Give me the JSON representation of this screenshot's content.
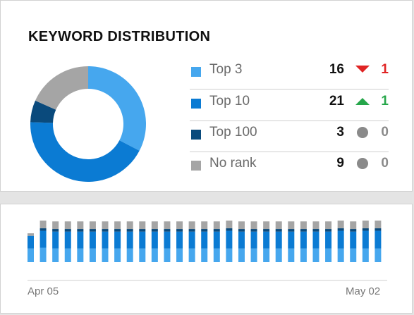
{
  "widget": {
    "title": "KEYWORD DISTRIBUTION"
  },
  "legend": [
    {
      "label": "Top 3",
      "count": "16",
      "trend": "down",
      "change": "1",
      "color": "#46a7ee"
    },
    {
      "label": "Top 10",
      "count": "21",
      "trend": "up",
      "change": "1",
      "color": "#0b7bd3"
    },
    {
      "label": "Top 100",
      "count": "3",
      "trend": "neutral",
      "change": "0",
      "color": "#0a4a7c"
    },
    {
      "label": "No rank",
      "count": "9",
      "trend": "neutral",
      "change": "0",
      "color": "#a5a5a5"
    }
  ],
  "trend_colors": {
    "down": "#e02424",
    "up": "#26a64a",
    "neutral": "#8a8a8a"
  },
  "timeline": {
    "start_label": "Apr 05",
    "end_label": "May 02"
  },
  "chart_data": [
    {
      "type": "pie",
      "categories": [
        "Top 3",
        "Top 10",
        "Top 100",
        "No rank"
      ],
      "values": [
        16,
        21,
        3,
        9
      ],
      "colors": [
        "#46a7ee",
        "#0b7bd3",
        "#0a4a7c",
        "#a5a5a5"
      ]
    },
    {
      "type": "bar",
      "stacked": true,
      "x_start": "Apr 05",
      "x_end": "May 02",
      "series": [
        {
          "name": "Top 3",
          "color": "#46a7ee",
          "values": [
            16,
            17,
            16,
            16,
            16,
            16,
            16,
            16,
            16,
            16,
            16,
            16,
            16,
            16,
            16,
            16,
            16,
            16,
            16,
            16,
            16,
            16,
            16,
            16,
            16,
            16,
            16,
            16,
            16
          ]
        },
        {
          "name": "Top 10",
          "color": "#0b7bd3",
          "values": [
            15,
            20,
            20,
            20,
            20,
            20,
            20,
            20,
            20,
            20,
            20,
            20,
            20,
            20,
            20,
            20,
            21,
            20,
            20,
            20,
            20,
            20,
            20,
            20,
            20,
            21,
            20,
            21,
            21
          ]
        },
        {
          "name": "Top 100",
          "color": "#0a4a7c",
          "values": [
            0,
            3,
            3,
            3,
            3,
            3,
            3,
            3,
            3,
            3,
            3,
            3,
            3,
            3,
            3,
            3,
            3,
            3,
            3,
            3,
            3,
            3,
            3,
            3,
            3,
            3,
            3,
            3,
            3
          ]
        },
        {
          "name": "No rank",
          "color": "#a5a5a5",
          "values": [
            3,
            9,
            9,
            9,
            9,
            9,
            9,
            9,
            9,
            9,
            9,
            9,
            9,
            9,
            9,
            9,
            9,
            9,
            9,
            9,
            9,
            9,
            9,
            9,
            9,
            9,
            9,
            9,
            9
          ]
        }
      ]
    }
  ]
}
